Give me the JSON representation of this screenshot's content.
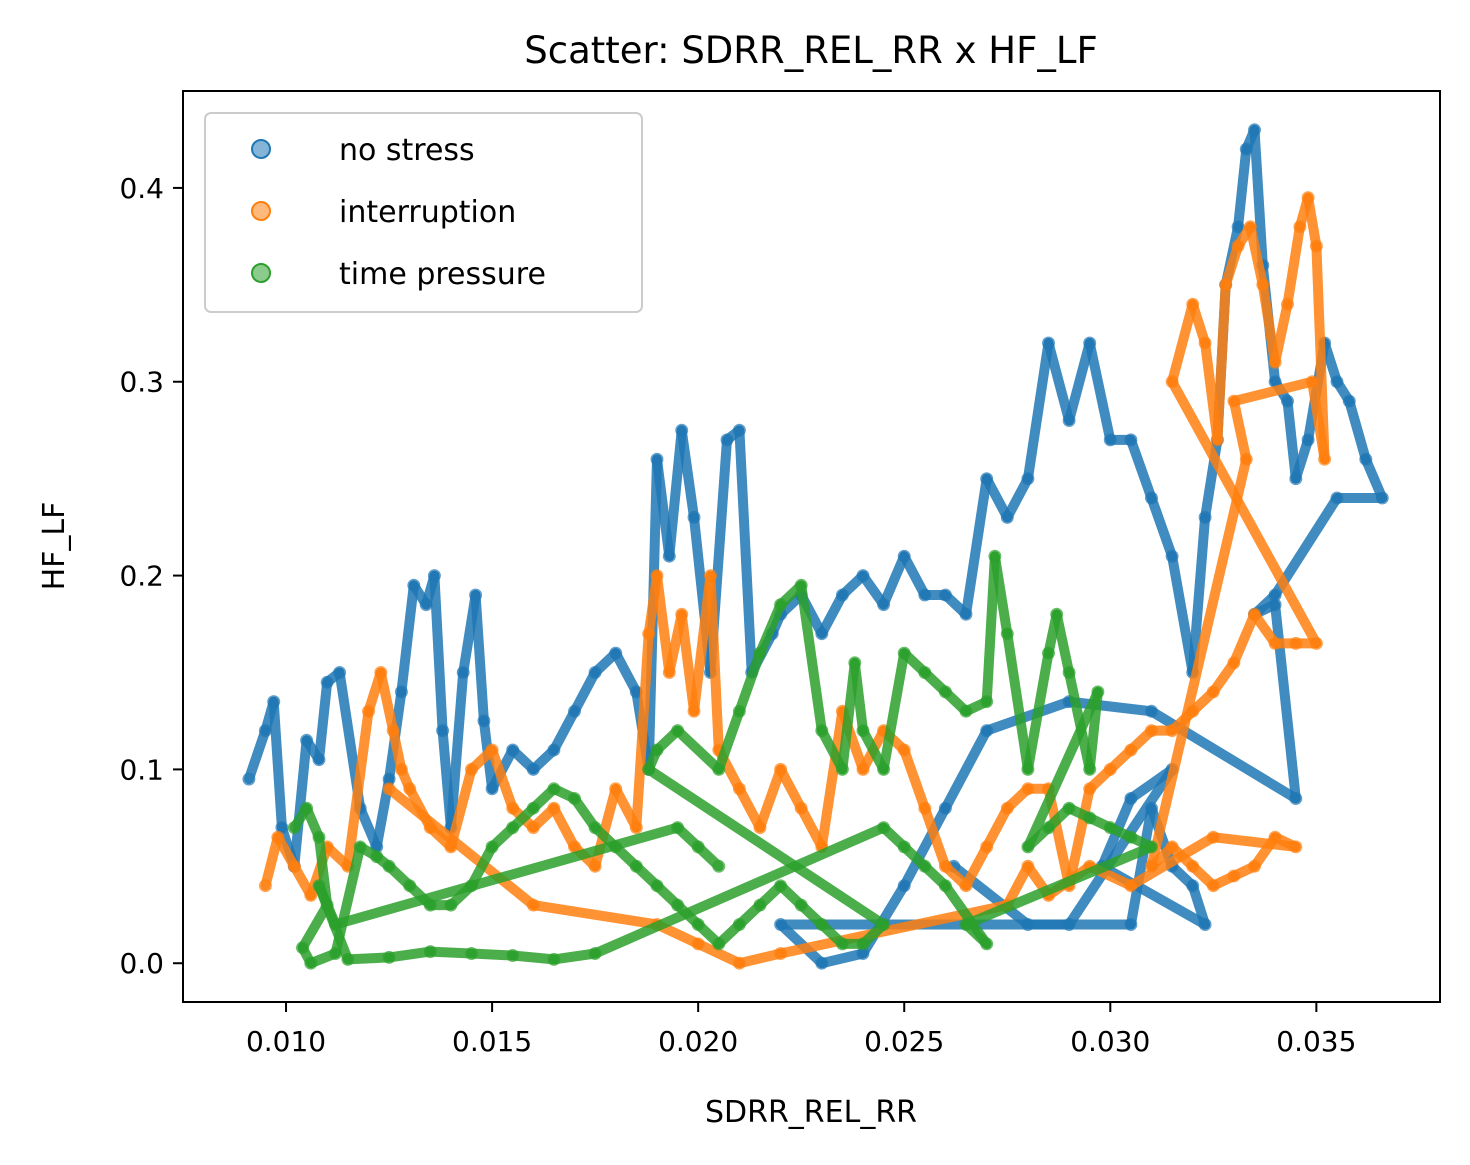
{
  "chart_data": {
    "type": "scatter",
    "title": "Scatter: SDRR_REL_RR x HF_LF",
    "xlabel": "SDRR_REL_RR",
    "ylabel": "HF_LF",
    "xlim": [
      0.0075,
      0.038
    ],
    "ylim": [
      -0.02,
      0.45
    ],
    "xticks": [
      0.01,
      0.015,
      0.02,
      0.025,
      0.03,
      0.035
    ],
    "xtick_labels": [
      "0.010",
      "0.015",
      "0.020",
      "0.025",
      "0.030",
      "0.035"
    ],
    "yticks": [
      0.0,
      0.1,
      0.2,
      0.3,
      0.4
    ],
    "ytick_labels": [
      "0.0",
      "0.1",
      "0.2",
      "0.3",
      "0.4"
    ],
    "grid": false,
    "legend_position": "upper-left",
    "series": [
      {
        "name": "no stress",
        "color": "#1f77b4",
        "points": [
          [
            0.0091,
            0.095
          ],
          [
            0.0095,
            0.12
          ],
          [
            0.0097,
            0.135
          ],
          [
            0.0099,
            0.07
          ],
          [
            0.0102,
            0.05
          ],
          [
            0.0105,
            0.115
          ],
          [
            0.0108,
            0.105
          ],
          [
            0.011,
            0.145
          ],
          [
            0.0113,
            0.15
          ],
          [
            0.0118,
            0.08
          ],
          [
            0.0122,
            0.06
          ],
          [
            0.0125,
            0.095
          ],
          [
            0.0128,
            0.14
          ],
          [
            0.0131,
            0.195
          ],
          [
            0.0134,
            0.185
          ],
          [
            0.0136,
            0.2
          ],
          [
            0.0138,
            0.12
          ],
          [
            0.014,
            0.07
          ],
          [
            0.0143,
            0.15
          ],
          [
            0.0146,
            0.19
          ],
          [
            0.0148,
            0.125
          ],
          [
            0.015,
            0.09
          ],
          [
            0.0155,
            0.11
          ],
          [
            0.016,
            0.1
          ],
          [
            0.0165,
            0.11
          ],
          [
            0.017,
            0.13
          ],
          [
            0.0175,
            0.15
          ],
          [
            0.018,
            0.16
          ],
          [
            0.0185,
            0.14
          ],
          [
            0.0188,
            0.1
          ],
          [
            0.019,
            0.26
          ],
          [
            0.0193,
            0.21
          ],
          [
            0.0196,
            0.275
          ],
          [
            0.0199,
            0.23
          ],
          [
            0.0203,
            0.15
          ],
          [
            0.0207,
            0.27
          ],
          [
            0.021,
            0.275
          ],
          [
            0.0213,
            0.15
          ],
          [
            0.0218,
            0.17
          ],
          [
            0.022,
            0.18
          ],
          [
            0.0225,
            0.19
          ],
          [
            0.023,
            0.17
          ],
          [
            0.0235,
            0.19
          ],
          [
            0.024,
            0.2
          ],
          [
            0.0245,
            0.185
          ],
          [
            0.025,
            0.21
          ],
          [
            0.0255,
            0.19
          ],
          [
            0.026,
            0.19
          ],
          [
            0.0265,
            0.18
          ],
          [
            0.027,
            0.25
          ],
          [
            0.0275,
            0.23
          ],
          [
            0.028,
            0.25
          ],
          [
            0.0285,
            0.32
          ],
          [
            0.029,
            0.28
          ],
          [
            0.0295,
            0.32
          ],
          [
            0.03,
            0.27
          ],
          [
            0.0305,
            0.27
          ],
          [
            0.031,
            0.24
          ],
          [
            0.0315,
            0.21
          ],
          [
            0.032,
            0.15
          ],
          [
            0.0323,
            0.23
          ],
          [
            0.0326,
            0.27
          ],
          [
            0.0328,
            0.35
          ],
          [
            0.0331,
            0.38
          ],
          [
            0.0333,
            0.42
          ],
          [
            0.0335,
            0.43
          ],
          [
            0.0337,
            0.36
          ],
          [
            0.034,
            0.3
          ],
          [
            0.0343,
            0.29
          ],
          [
            0.0345,
            0.25
          ],
          [
            0.0348,
            0.27
          ],
          [
            0.0352,
            0.32
          ],
          [
            0.0355,
            0.3
          ],
          [
            0.0358,
            0.29
          ],
          [
            0.0362,
            0.26
          ],
          [
            0.0366,
            0.24
          ],
          [
            0.0355,
            0.24
          ],
          [
            0.034,
            0.19
          ],
          [
            0.0335,
            0.18
          ],
          [
            0.034,
            0.185
          ],
          [
            0.0345,
            0.085
          ],
          [
            0.031,
            0.13
          ],
          [
            0.029,
            0.135
          ],
          [
            0.027,
            0.12
          ],
          [
            0.026,
            0.08
          ],
          [
            0.025,
            0.04
          ],
          [
            0.024,
            0.005
          ],
          [
            0.023,
            0.0
          ],
          [
            0.022,
            0.02
          ],
          [
            0.0305,
            0.02
          ],
          [
            0.031,
            0.08
          ],
          [
            0.0315,
            0.05
          ],
          [
            0.032,
            0.04
          ],
          [
            0.0323,
            0.02
          ],
          [
            0.0298,
            0.05
          ],
          [
            0.0305,
            0.085
          ],
          [
            0.0315,
            0.1
          ],
          [
            0.029,
            0.02
          ],
          [
            0.028,
            0.02
          ],
          [
            0.0262,
            0.05
          ]
        ]
      },
      {
        "name": "interruption",
        "color": "#ff7f0e",
        "points": [
          [
            0.0095,
            0.04
          ],
          [
            0.0098,
            0.065
          ],
          [
            0.0102,
            0.05
          ],
          [
            0.0106,
            0.035
          ],
          [
            0.011,
            0.06
          ],
          [
            0.0115,
            0.05
          ],
          [
            0.012,
            0.13
          ],
          [
            0.0123,
            0.15
          ],
          [
            0.0126,
            0.12
          ],
          [
            0.0128,
            0.1
          ],
          [
            0.013,
            0.09
          ],
          [
            0.0135,
            0.07
          ],
          [
            0.014,
            0.06
          ],
          [
            0.0145,
            0.1
          ],
          [
            0.015,
            0.11
          ],
          [
            0.0155,
            0.08
          ],
          [
            0.016,
            0.07
          ],
          [
            0.0165,
            0.08
          ],
          [
            0.017,
            0.06
          ],
          [
            0.0175,
            0.05
          ],
          [
            0.018,
            0.09
          ],
          [
            0.0185,
            0.07
          ],
          [
            0.0188,
            0.17
          ],
          [
            0.019,
            0.2
          ],
          [
            0.0193,
            0.15
          ],
          [
            0.0196,
            0.18
          ],
          [
            0.0199,
            0.13
          ],
          [
            0.0203,
            0.2
          ],
          [
            0.0205,
            0.11
          ],
          [
            0.021,
            0.09
          ],
          [
            0.0215,
            0.07
          ],
          [
            0.022,
            0.1
          ],
          [
            0.0225,
            0.08
          ],
          [
            0.023,
            0.06
          ],
          [
            0.0235,
            0.13
          ],
          [
            0.024,
            0.1
          ],
          [
            0.0245,
            0.12
          ],
          [
            0.025,
            0.11
          ],
          [
            0.0255,
            0.08
          ],
          [
            0.026,
            0.05
          ],
          [
            0.0265,
            0.04
          ],
          [
            0.027,
            0.06
          ],
          [
            0.0275,
            0.08
          ],
          [
            0.028,
            0.09
          ],
          [
            0.0285,
            0.09
          ],
          [
            0.029,
            0.04
          ],
          [
            0.0295,
            0.09
          ],
          [
            0.03,
            0.1
          ],
          [
            0.0305,
            0.11
          ],
          [
            0.031,
            0.12
          ],
          [
            0.0315,
            0.12
          ],
          [
            0.032,
            0.13
          ],
          [
            0.0325,
            0.14
          ],
          [
            0.033,
            0.155
          ],
          [
            0.0335,
            0.18
          ],
          [
            0.034,
            0.165
          ],
          [
            0.0345,
            0.165
          ],
          [
            0.035,
            0.165
          ],
          [
            0.0315,
            0.3
          ],
          [
            0.032,
            0.34
          ],
          [
            0.0323,
            0.32
          ],
          [
            0.0326,
            0.27
          ],
          [
            0.0328,
            0.35
          ],
          [
            0.0331,
            0.37
          ],
          [
            0.0334,
            0.38
          ],
          [
            0.0337,
            0.35
          ],
          [
            0.034,
            0.31
          ],
          [
            0.0343,
            0.34
          ],
          [
            0.0346,
            0.38
          ],
          [
            0.0348,
            0.395
          ],
          [
            0.035,
            0.37
          ],
          [
            0.0352,
            0.26
          ],
          [
            0.0349,
            0.3
          ],
          [
            0.033,
            0.29
          ],
          [
            0.0333,
            0.26
          ],
          [
            0.031,
            0.05
          ],
          [
            0.0315,
            0.06
          ],
          [
            0.032,
            0.05
          ],
          [
            0.0325,
            0.04
          ],
          [
            0.033,
            0.045
          ],
          [
            0.0335,
            0.05
          ],
          [
            0.034,
            0.065
          ],
          [
            0.0345,
            0.06
          ],
          [
            0.0325,
            0.065
          ],
          [
            0.0305,
            0.04
          ],
          [
            0.0295,
            0.05
          ],
          [
            0.0285,
            0.035
          ],
          [
            0.028,
            0.05
          ],
          [
            0.0275,
            0.03
          ],
          [
            0.022,
            0.005
          ],
          [
            0.021,
            0.0
          ],
          [
            0.02,
            0.01
          ],
          [
            0.019,
            0.02
          ],
          [
            0.016,
            0.03
          ],
          [
            0.0125,
            0.09
          ]
        ]
      },
      {
        "name": "time pressure",
        "color": "#2ca02c",
        "points": [
          [
            0.0102,
            0.07
          ],
          [
            0.0105,
            0.08
          ],
          [
            0.0108,
            0.065
          ],
          [
            0.011,
            0.03
          ],
          [
            0.0104,
            0.008
          ],
          [
            0.0106,
            0.0
          ],
          [
            0.0112,
            0.005
          ],
          [
            0.0118,
            0.06
          ],
          [
            0.0122,
            0.055
          ],
          [
            0.0125,
            0.05
          ],
          [
            0.013,
            0.04
          ],
          [
            0.0135,
            0.03
          ],
          [
            0.014,
            0.03
          ],
          [
            0.0145,
            0.04
          ],
          [
            0.015,
            0.06
          ],
          [
            0.0155,
            0.07
          ],
          [
            0.016,
            0.08
          ],
          [
            0.0165,
            0.09
          ],
          [
            0.017,
            0.085
          ],
          [
            0.0175,
            0.07
          ],
          [
            0.018,
            0.06
          ],
          [
            0.0185,
            0.05
          ],
          [
            0.019,
            0.04
          ],
          [
            0.0195,
            0.03
          ],
          [
            0.02,
            0.02
          ],
          [
            0.0205,
            0.01
          ],
          [
            0.021,
            0.02
          ],
          [
            0.0215,
            0.03
          ],
          [
            0.022,
            0.04
          ],
          [
            0.0225,
            0.03
          ],
          [
            0.023,
            0.02
          ],
          [
            0.0235,
            0.01
          ],
          [
            0.024,
            0.01
          ],
          [
            0.0245,
            0.02
          ],
          [
            0.0188,
            0.1
          ],
          [
            0.019,
            0.11
          ],
          [
            0.0195,
            0.12
          ],
          [
            0.0205,
            0.1
          ],
          [
            0.021,
            0.13
          ],
          [
            0.0215,
            0.16
          ],
          [
            0.022,
            0.185
          ],
          [
            0.0225,
            0.195
          ],
          [
            0.023,
            0.12
          ],
          [
            0.0235,
            0.1
          ],
          [
            0.0238,
            0.155
          ],
          [
            0.024,
            0.12
          ],
          [
            0.0245,
            0.1
          ],
          [
            0.025,
            0.16
          ],
          [
            0.0255,
            0.15
          ],
          [
            0.026,
            0.14
          ],
          [
            0.0265,
            0.13
          ],
          [
            0.027,
            0.135
          ],
          [
            0.0272,
            0.21
          ],
          [
            0.0275,
            0.17
          ],
          [
            0.028,
            0.1
          ],
          [
            0.0285,
            0.16
          ],
          [
            0.0287,
            0.18
          ],
          [
            0.029,
            0.15
          ],
          [
            0.0295,
            0.1
          ],
          [
            0.0297,
            0.14
          ],
          [
            0.028,
            0.06
          ],
          [
            0.0285,
            0.07
          ],
          [
            0.029,
            0.08
          ],
          [
            0.0295,
            0.075
          ],
          [
            0.03,
            0.07
          ],
          [
            0.0305,
            0.065
          ],
          [
            0.031,
            0.06
          ],
          [
            0.0265,
            0.02
          ],
          [
            0.027,
            0.01
          ],
          [
            0.026,
            0.04
          ],
          [
            0.0255,
            0.05
          ],
          [
            0.025,
            0.06
          ],
          [
            0.0245,
            0.07
          ],
          [
            0.0175,
            0.005
          ],
          [
            0.0165,
            0.002
          ],
          [
            0.0155,
            0.004
          ],
          [
            0.0145,
            0.005
          ],
          [
            0.0135,
            0.006
          ],
          [
            0.0125,
            0.003
          ],
          [
            0.0115,
            0.002
          ],
          [
            0.0108,
            0.04
          ],
          [
            0.0112,
            0.02
          ],
          [
            0.0195,
            0.07
          ],
          [
            0.02,
            0.06
          ],
          [
            0.0205,
            0.05
          ]
        ]
      }
    ]
  }
}
